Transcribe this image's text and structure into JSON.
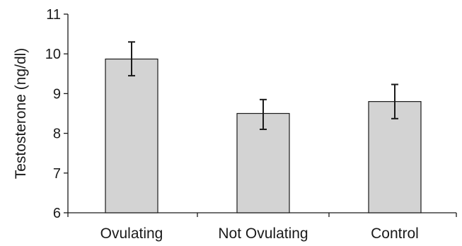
{
  "chart_data": {
    "type": "bar",
    "title": "",
    "xlabel": "",
    "ylabel": "Testosterone (ng/dl)",
    "ylim": [
      6,
      11
    ],
    "yticks": [
      6,
      7,
      8,
      9,
      10,
      11
    ],
    "grid": false,
    "categories": [
      "Ovulating",
      "Not Ovulating",
      "Control"
    ],
    "values": [
      9.87,
      8.5,
      8.8
    ],
    "error_low": [
      9.45,
      8.1,
      8.37
    ],
    "error_high": [
      10.3,
      8.85,
      9.23
    ],
    "colors": {
      "bar_fill": "#d3d3d3",
      "bar_stroke": "#1a1a1a",
      "axis": "#1a1a1a",
      "error_bar": "#1a1a1a"
    }
  }
}
